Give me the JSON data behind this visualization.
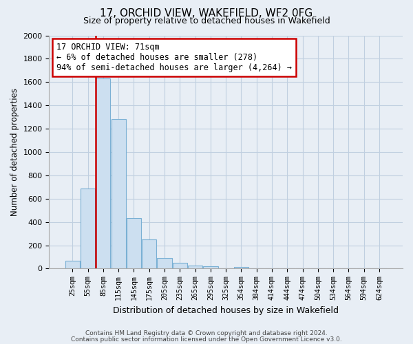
{
  "title": "17, ORCHID VIEW, WAKEFIELD, WF2 0FG",
  "subtitle": "Size of property relative to detached houses in Wakefield",
  "xlabel": "Distribution of detached houses by size in Wakefield",
  "ylabel": "Number of detached properties",
  "bar_labels": [
    "25sqm",
    "55sqm",
    "85sqm",
    "115sqm",
    "145sqm",
    "175sqm",
    "205sqm",
    "235sqm",
    "265sqm",
    "295sqm",
    "325sqm",
    "354sqm",
    "384sqm",
    "414sqm",
    "444sqm",
    "474sqm",
    "504sqm",
    "534sqm",
    "564sqm",
    "594sqm",
    "624sqm"
  ],
  "bar_values": [
    65,
    690,
    1630,
    1285,
    435,
    250,
    90,
    50,
    28,
    20,
    0,
    15,
    0,
    0,
    0,
    0,
    0,
    0,
    0,
    0,
    0
  ],
  "bar_color": "#ccdff0",
  "bar_edge_color": "#7ab0d4",
  "ylim": [
    0,
    2000
  ],
  "yticks": [
    0,
    200,
    400,
    600,
    800,
    1000,
    1200,
    1400,
    1600,
    1800,
    2000
  ],
  "vline_x": 1.5,
  "vline_color": "#cc0000",
  "annotation_title": "17 ORCHID VIEW: 71sqm",
  "annotation_line1": "← 6% of detached houses are smaller (278)",
  "annotation_line2": "94% of semi-detached houses are larger (4,264) →",
  "annotation_box_facecolor": "white",
  "annotation_box_edgecolor": "#cc0000",
  "footer_line1": "Contains HM Land Registry data © Crown copyright and database right 2024.",
  "footer_line2": "Contains public sector information licensed under the Open Government Licence v3.0.",
  "fig_facecolor": "#e8eef5",
  "axes_facecolor": "#e8eef5",
  "grid_color": "#c0cfe0"
}
